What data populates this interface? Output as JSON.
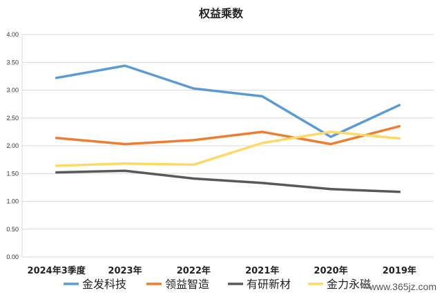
{
  "chart_data": {
    "type": "line",
    "title": "权益乘数",
    "categories": [
      "2024年3季度",
      "2023年",
      "2022年",
      "2021年",
      "2020年",
      "2019年"
    ],
    "ylim": [
      0,
      4
    ],
    "yticks": [
      "0.00",
      "0.50",
      "1.00",
      "1.50",
      "2.00",
      "2.50",
      "3.00",
      "3.50",
      "4.00"
    ],
    "grid": true,
    "legend_position": "bottom",
    "series": [
      {
        "name": "金发科技",
        "color": "#5B9BD5",
        "values": [
          3.22,
          3.44,
          3.03,
          2.89,
          2.16,
          2.73
        ]
      },
      {
        "name": "领益智造",
        "color": "#ED7D31",
        "values": [
          2.14,
          2.03,
          2.1,
          2.25,
          2.03,
          2.35
        ]
      },
      {
        "name": "有研新材",
        "color": "#595959",
        "values": [
          1.52,
          1.55,
          1.41,
          1.33,
          1.22,
          1.17
        ]
      },
      {
        "name": "金力永磁",
        "color": "#FFD966",
        "values": [
          1.64,
          1.68,
          1.66,
          2.05,
          2.25,
          2.13
        ]
      }
    ]
  },
  "watermark": "www.365jz.com"
}
